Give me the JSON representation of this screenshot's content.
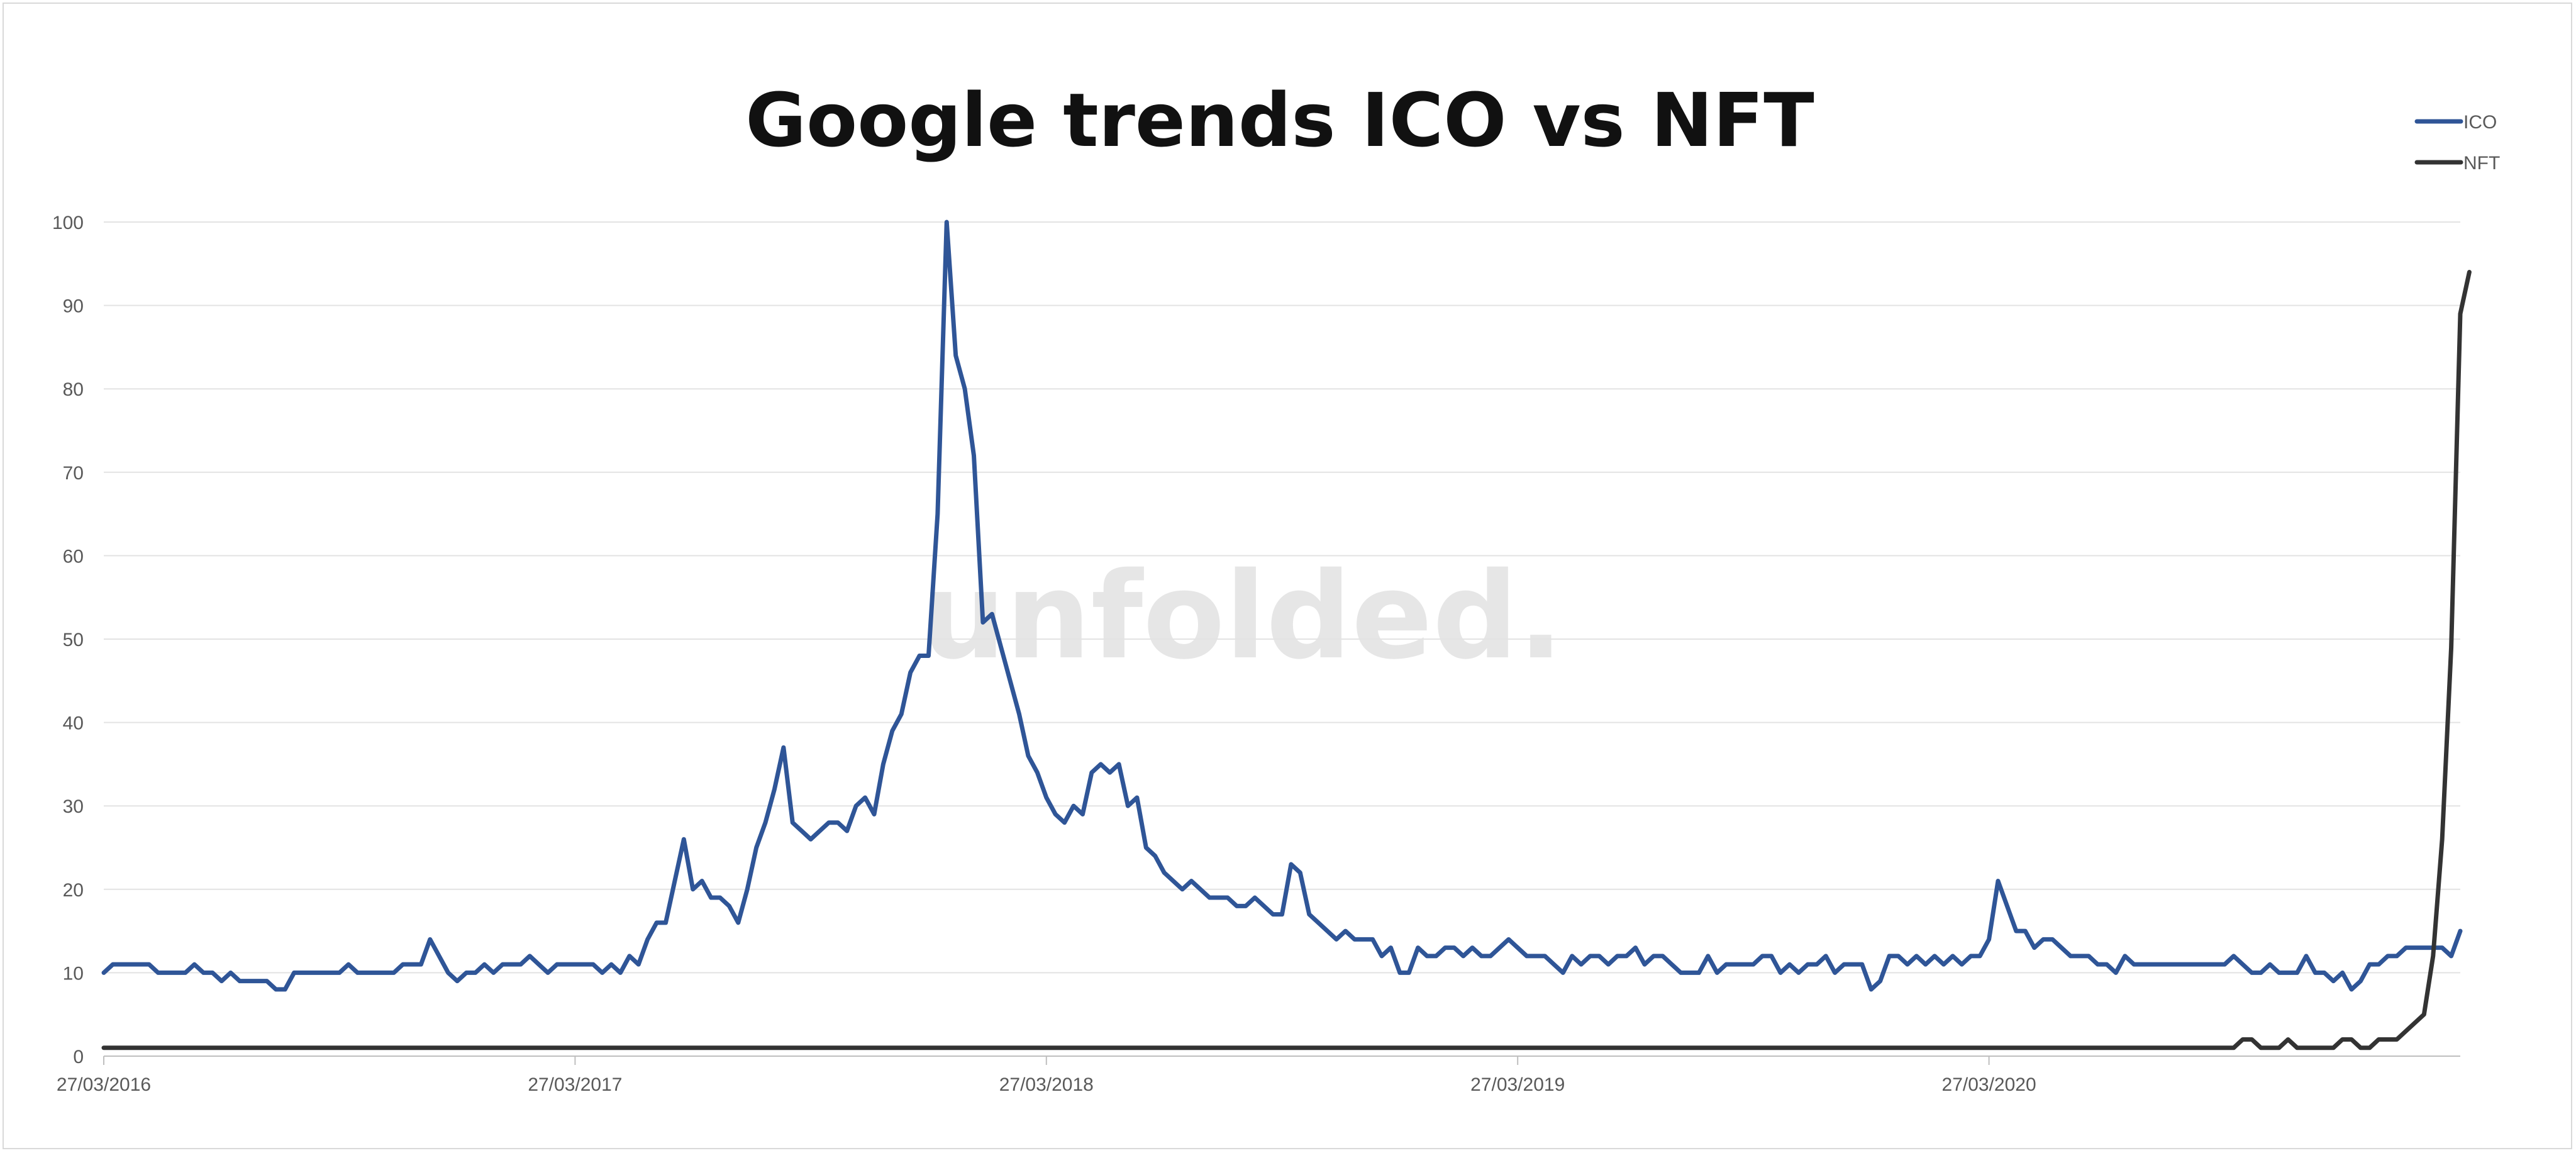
{
  "chart_data": {
    "type": "line",
    "title": "Google trends ICO vs NFT",
    "watermark": "unfolded.",
    "xlabel": "",
    "ylabel": "",
    "ylim": [
      0,
      100
    ],
    "yticks": [
      0,
      10,
      20,
      30,
      40,
      50,
      60,
      70,
      80,
      90,
      100
    ],
    "x_start": "27/03/2016",
    "x_interval": "weekly",
    "xticks": [
      {
        "label": "27/03/2016",
        "index": 0
      },
      {
        "label": "27/03/2017",
        "index": 52
      },
      {
        "label": "27/03/2018",
        "index": 104
      },
      {
        "label": "27/03/2019",
        "index": 156
      },
      {
        "label": "27/03/2020",
        "index": 208
      }
    ],
    "grid": true,
    "legend_position": "top-right",
    "series": [
      {
        "name": "ICO",
        "color": "#2f5597",
        "values": [
          10,
          11,
          11,
          11,
          11,
          11,
          10,
          10,
          10,
          10,
          11,
          10,
          10,
          9,
          10,
          9,
          9,
          9,
          9,
          8,
          8,
          10,
          10,
          10,
          10,
          10,
          10,
          11,
          10,
          10,
          10,
          10,
          10,
          11,
          11,
          11,
          14,
          12,
          10,
          9,
          10,
          10,
          11,
          10,
          11,
          11,
          11,
          12,
          11,
          10,
          11,
          11,
          11,
          11,
          11,
          10,
          11,
          10,
          12,
          11,
          14,
          16,
          16,
          21,
          26,
          20,
          21,
          19,
          19,
          18,
          16,
          20,
          25,
          28,
          32,
          37,
          28,
          27,
          26,
          27,
          28,
          28,
          27,
          30,
          31,
          29,
          35,
          39,
          41,
          46,
          48,
          48,
          65,
          100,
          84,
          80,
          72,
          52,
          53,
          49,
          45,
          41,
          36,
          34,
          31,
          29,
          28,
          30,
          29,
          34,
          35,
          34,
          35,
          30,
          31,
          25,
          24,
          22,
          21,
          20,
          21,
          20,
          19,
          19,
          19,
          18,
          18,
          19,
          18,
          17,
          17,
          23,
          22,
          17,
          16,
          15,
          14,
          15,
          14,
          14,
          14,
          12,
          13,
          10,
          10,
          13,
          12,
          12,
          13,
          13,
          12,
          13,
          12,
          12,
          13,
          14,
          13,
          12,
          12,
          12,
          11,
          10,
          12,
          11,
          12,
          12,
          11,
          12,
          12,
          13,
          11,
          12,
          12,
          11,
          10,
          10,
          10,
          12,
          10,
          11,
          11,
          11,
          11,
          12,
          12,
          10,
          11,
          10,
          11,
          11,
          12,
          10,
          11,
          11,
          11,
          8,
          9,
          12,
          12,
          11,
          12,
          11,
          12,
          11,
          12,
          11,
          12,
          12,
          14,
          21,
          18,
          15,
          15,
          13,
          14,
          14,
          13,
          12,
          12,
          12,
          11,
          11,
          10,
          12,
          11,
          11,
          11,
          11,
          11,
          11,
          11,
          11,
          11,
          11,
          11,
          12,
          11,
          10,
          10,
          11,
          10,
          10,
          10,
          12,
          10,
          10,
          9,
          10,
          8,
          9,
          11,
          11,
          12,
          12,
          13,
          13,
          13,
          13,
          13,
          12,
          15
        ]
      },
      {
        "name": "NFT",
        "color": "#333333",
        "values": [
          1,
          1,
          1,
          1,
          1,
          1,
          1,
          1,
          1,
          1,
          1,
          1,
          1,
          1,
          1,
          1,
          1,
          1,
          1,
          1,
          1,
          1,
          1,
          1,
          1,
          1,
          1,
          1,
          1,
          1,
          1,
          1,
          1,
          1,
          1,
          1,
          1,
          1,
          1,
          1,
          1,
          1,
          1,
          1,
          1,
          1,
          1,
          1,
          1,
          1,
          1,
          1,
          1,
          1,
          1,
          1,
          1,
          1,
          1,
          1,
          1,
          1,
          1,
          1,
          1,
          1,
          1,
          1,
          1,
          1,
          1,
          1,
          1,
          1,
          1,
          1,
          1,
          1,
          1,
          1,
          1,
          1,
          1,
          1,
          1,
          1,
          1,
          1,
          1,
          1,
          1,
          1,
          1,
          1,
          1,
          1,
          1,
          1,
          1,
          1,
          1,
          1,
          1,
          1,
          1,
          1,
          1,
          1,
          1,
          1,
          1,
          1,
          1,
          1,
          1,
          1,
          1,
          1,
          1,
          1,
          1,
          1,
          1,
          1,
          1,
          1,
          1,
          1,
          1,
          1,
          1,
          1,
          1,
          1,
          1,
          1,
          1,
          1,
          1,
          1,
          1,
          1,
          1,
          1,
          1,
          1,
          1,
          1,
          1,
          1,
          1,
          1,
          1,
          1,
          1,
          1,
          1,
          1,
          1,
          1,
          1,
          1,
          1,
          1,
          1,
          1,
          1,
          1,
          1,
          1,
          1,
          1,
          1,
          1,
          1,
          1,
          1,
          1,
          1,
          1,
          1,
          1,
          1,
          1,
          1,
          1,
          1,
          1,
          1,
          1,
          1,
          1,
          1,
          1,
          1,
          1,
          1,
          1,
          1,
          1,
          1,
          1,
          1,
          1,
          1,
          1,
          1,
          1,
          1,
          1,
          1,
          1,
          1,
          1,
          1,
          1,
          1,
          1,
          1,
          1,
          1,
          1,
          1,
          1,
          1,
          1,
          1,
          1,
          1,
          1,
          1,
          1,
          1,
          1,
          1,
          1,
          2,
          2,
          1,
          1,
          1,
          2,
          1,
          1,
          1,
          1,
          1,
          2,
          2,
          1,
          1,
          2,
          2,
          2,
          3,
          4,
          5,
          12,
          26,
          49,
          89,
          94
        ]
      }
    ]
  }
}
